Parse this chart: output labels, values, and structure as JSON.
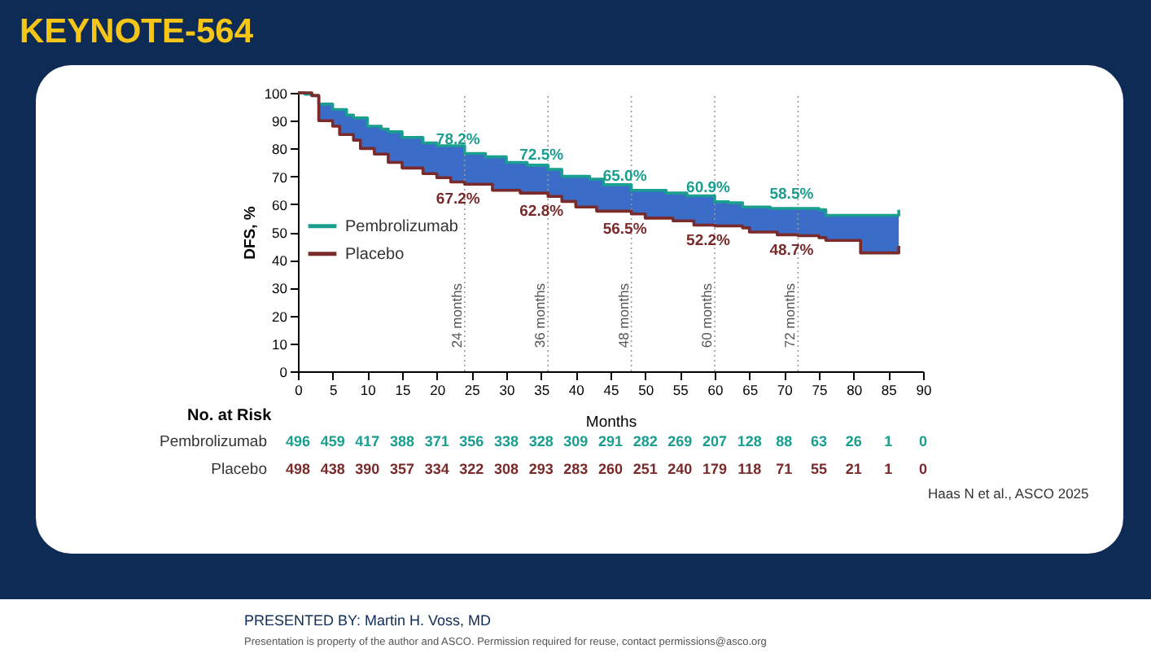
{
  "chart_data": {
    "type": "step",
    "title": "KEYNOTE-564",
    "xlabel": "Months",
    "ylabel": "DFS, %",
    "xlim": [
      0,
      90
    ],
    "xticks": [
      0,
      5,
      10,
      15,
      20,
      25,
      30,
      35,
      40,
      45,
      50,
      55,
      60,
      65,
      70,
      75,
      80,
      85,
      90
    ],
    "ylim": [
      0,
      100
    ],
    "yticks": [
      0,
      10,
      20,
      30,
      40,
      50,
      60,
      70,
      80,
      90,
      100
    ],
    "grid": false,
    "x": [
      0,
      1,
      2,
      3,
      5,
      6,
      7,
      8,
      9,
      10,
      11,
      12,
      13,
      15,
      18,
      20,
      22,
      24,
      27,
      28,
      30,
      32,
      33,
      36,
      38,
      40,
      42,
      43,
      44,
      48,
      50,
      53,
      54,
      56,
      57,
      60,
      62,
      64,
      65,
      68,
      69,
      72,
      75,
      76,
      80,
      81,
      86,
      86.5
    ],
    "legend": "left",
    "line_style": "solid",
    "marker": "none",
    "series": [
      {
        "name": "Pembrolizumab",
        "color": "#1a9e8f",
        "values": [
          100,
          99.5,
          99,
          96,
          94,
          94,
          92,
          91,
          91,
          88,
          88,
          87,
          86,
          84,
          82,
          81,
          81,
          78.2,
          77,
          77,
          75,
          75,
          74,
          72.5,
          70,
          70,
          69,
          69,
          67,
          65,
          65,
          64,
          64,
          63,
          63,
          60.9,
          60.5,
          59,
          59,
          58.5,
          58.5,
          58.5,
          58,
          56,
          56,
          56,
          56,
          58
        ],
        "lower": [
          100,
          100,
          99,
          90,
          88,
          85,
          85,
          83,
          80,
          80,
          78,
          78,
          75,
          73,
          71,
          69.5,
          68,
          67.2,
          67.2,
          65,
          65,
          64,
          64,
          62.8,
          61,
          59,
          59,
          57.5,
          57.5,
          56.5,
          55,
          55,
          54,
          54,
          52.5,
          52.2,
          52.2,
          51.5,
          50,
          50,
          49,
          48.7,
          48,
          47,
          47,
          42.5,
          42.5,
          45
        ],
        "upper": [
          100,
          99.5,
          99,
          96,
          94,
          94,
          92,
          91,
          91,
          88,
          88,
          87,
          86,
          84,
          82,
          81,
          81,
          78.2,
          77,
          77,
          75,
          75,
          74,
          72.5,
          70,
          70,
          69,
          69,
          67,
          65,
          65,
          64,
          64,
          63,
          63,
          60.9,
          60.5,
          59,
          59,
          58.5,
          58.5,
          58.5,
          58,
          56,
          56,
          56,
          56,
          58
        ]
      },
      {
        "name": "Placebo",
        "color": "#7a2a2a",
        "values": [
          100,
          100,
          99,
          90,
          88,
          85,
          85,
          83,
          80,
          80,
          78,
          78,
          75,
          73,
          71,
          69.5,
          68,
          67.2,
          67.2,
          65,
          65,
          64,
          64,
          62.8,
          61,
          59,
          59,
          57.5,
          57.5,
          56.5,
          55,
          55,
          54,
          54,
          52.5,
          52.2,
          52.2,
          51.5,
          50,
          50,
          49,
          48.7,
          48,
          47,
          47,
          42.5,
          42.5,
          45
        ]
      }
    ],
    "ref_lines": [
      {
        "axis": "x",
        "value": 24,
        "label": "24 months",
        "line_style": "dotted",
        "color": "#999999"
      },
      {
        "axis": "x",
        "value": 36,
        "label": "36 months",
        "line_style": "dotted",
        "color": "#999999"
      },
      {
        "axis": "x",
        "value": 48,
        "label": "48 months",
        "line_style": "dotted",
        "color": "#999999"
      },
      {
        "axis": "x",
        "value": 60,
        "label": "60 months",
        "line_style": "dotted",
        "color": "#999999"
      },
      {
        "axis": "x",
        "value": 72,
        "label": "72 months",
        "line_style": "dotted",
        "color": "#999999"
      }
    ],
    "annotations": [
      {
        "text": "78.2%",
        "x": 24,
        "y": 78.2
      },
      {
        "text": "67.2%",
        "x": 24,
        "y": 67.2
      },
      {
        "text": "72.5%",
        "x": 36,
        "y": 72.5
      },
      {
        "text": "62.8%",
        "x": 36,
        "y": 62.8
      },
      {
        "text": "65.0%",
        "x": 48,
        "y": 65.0
      },
      {
        "text": "56.5%",
        "x": 48,
        "y": 56.5
      },
      {
        "text": "60.9%",
        "x": 60,
        "y": 60.9
      },
      {
        "text": "52.2%",
        "x": 60,
        "y": 52.2
      },
      {
        "text": "58.5%",
        "x": 72,
        "y": 58.5
      },
      {
        "text": "48.7%",
        "x": 72,
        "y": 48.7
      },
      "No. at Risk",
      "496 459 417 388 371 356 338 328 309 291 282 269 207 128 88 63 26 1 0",
      "498 438 390 357 334 322 308 293 283 260 251 240 179 118 71 55 21 1 0",
      "Haas N et al., ASCO 2025",
      "PRESENTED BY: Martin H. Voss, MD",
      "Presentation is property of the author and ASCO. Permission required for reuse, contact permissions@asco.org"
    ]
  }
}
